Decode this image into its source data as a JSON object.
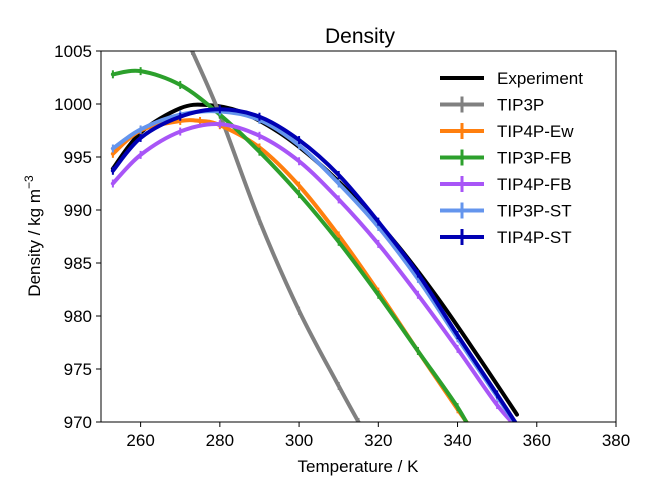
{
  "chart_data": {
    "type": "line",
    "title": "Density",
    "xlabel": "Temperature / K",
    "ylabel": "Density / kg m",
    "ylabel_exponent": "−3",
    "xlim": [
      250,
      380
    ],
    "ylim": [
      970,
      1005
    ],
    "xticks": [
      260,
      280,
      300,
      320,
      340,
      360,
      380
    ],
    "yticks": [
      970,
      975,
      980,
      985,
      990,
      995,
      1000,
      1005
    ],
    "grid": false,
    "legend_position": "top-right",
    "series": [
      {
        "name": "Experiment",
        "color": "#000000",
        "markers": false,
        "x": [
          253,
          260,
          270,
          277,
          285,
          295,
          305,
          315,
          325,
          335,
          345,
          355
        ],
        "y": [
          993.9,
          997.3,
          999.6,
          999.9,
          999.3,
          997.3,
          994.4,
          990.8,
          986.6,
          981.7,
          976.3,
          970.7
        ]
      },
      {
        "name": "TIP3P",
        "color": "#808080",
        "markers": true,
        "x": [
          273,
          280,
          290,
          300,
          310,
          315
        ],
        "y": [
          1005.0,
          999.0,
          989.0,
          980.5,
          973.4,
          970.0
        ]
      },
      {
        "name": "TIP4P-Ew",
        "color": "#ff7f0e",
        "markers": true,
        "x": [
          253,
          260,
          270,
          275,
          280,
          290,
          300,
          310,
          320,
          330,
          340,
          345
        ],
        "y": [
          995.3,
          997.5,
          998.4,
          998.4,
          998.0,
          995.9,
          992.3,
          987.6,
          982.3,
          976.7,
          971.2,
          968.6
        ]
      },
      {
        "name": "TIP3P-FB",
        "color": "#2ca02c",
        "markers": true,
        "x": [
          253,
          260,
          270,
          280,
          290,
          300,
          310,
          320,
          330,
          340,
          345
        ],
        "y": [
          1002.8,
          1003.1,
          1001.8,
          999.0,
          995.5,
          991.5,
          987.0,
          982.0,
          976.7,
          971.4,
          968.0
        ]
      },
      {
        "name": "TIP4P-FB",
        "color": "#a855f7",
        "markers": true,
        "x": [
          253,
          260,
          270,
          280,
          290,
          300,
          310,
          320,
          330,
          340,
          350,
          356
        ],
        "y": [
          992.5,
          995.2,
          997.4,
          998.1,
          997.0,
          994.6,
          991.0,
          986.8,
          982.0,
          976.9,
          971.6,
          969.1
        ]
      },
      {
        "name": "TIP3P-ST",
        "color": "#6495ed",
        "markers": true,
        "x": [
          253,
          260,
          270,
          280,
          290,
          300,
          310,
          320,
          330,
          340,
          350,
          357
        ],
        "y": [
          995.8,
          997.6,
          999.0,
          999.3,
          998.5,
          996.1,
          992.5,
          988.4,
          983.5,
          977.9,
          972.4,
          968.5
        ]
      },
      {
        "name": "TIP4P-ST",
        "color": "#0000b3",
        "markers": true,
        "x": [
          253,
          260,
          270,
          280,
          290,
          300,
          310,
          320,
          330,
          340,
          350,
          358
        ],
        "y": [
          993.7,
          996.8,
          998.8,
          999.5,
          998.8,
          996.6,
          993.3,
          988.9,
          984.0,
          978.2,
          972.6,
          968.0
        ]
      }
    ]
  }
}
